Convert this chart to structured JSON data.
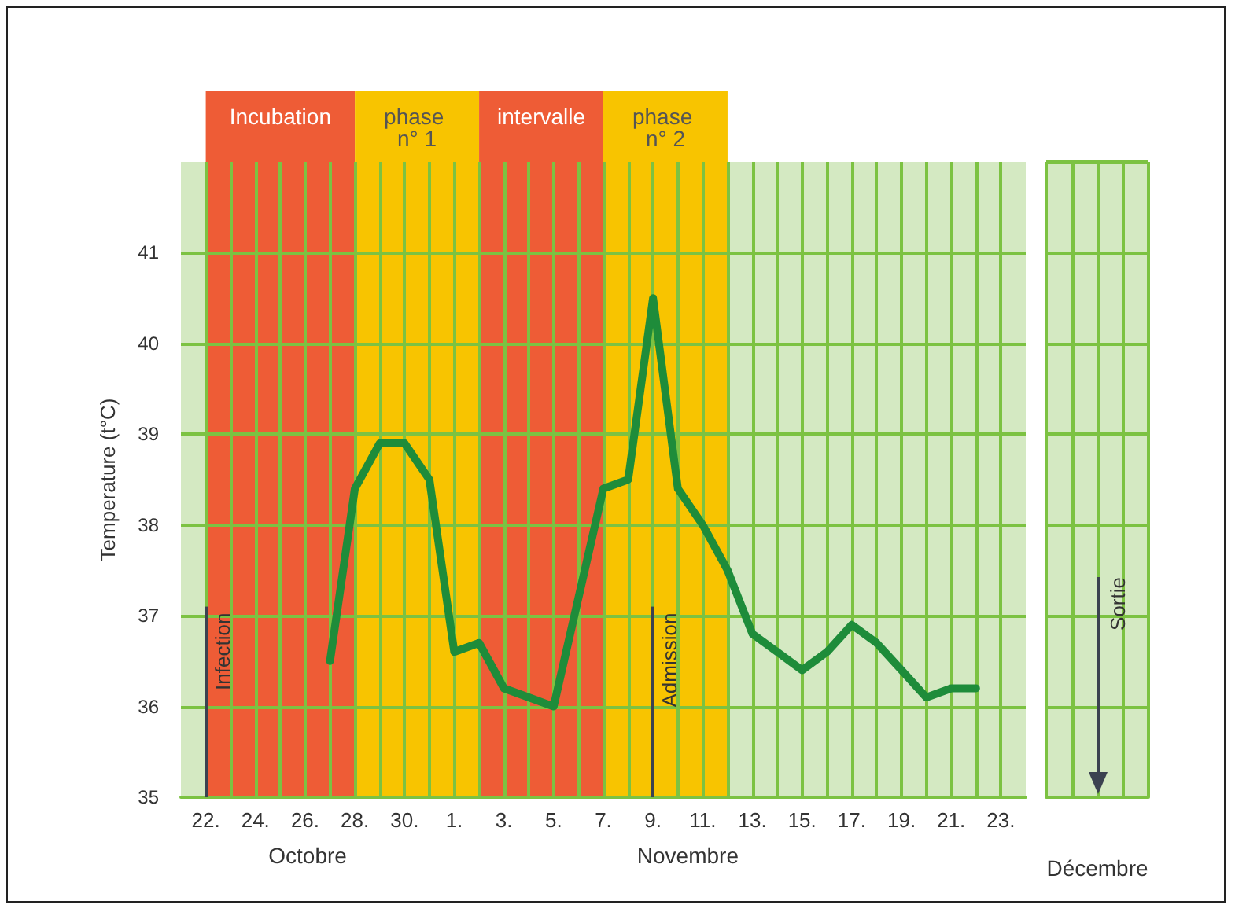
{
  "chart_data": [
    {
      "type": "line",
      "ylabel": "Temperature (t°C)",
      "annotations": [
        "Octobre",
        "Novembre"
      ],
      "xlim": [
        "--10-21",
        "--11-24"
      ],
      "ylim": [
        35,
        42
      ],
      "yticks": [
        35,
        36,
        37,
        38,
        39,
        40,
        41
      ],
      "xticks": [
        {
          "value": "--10-22",
          "label": "22."
        },
        {
          "value": "--10-23",
          "label": null
        },
        {
          "value": "--10-24",
          "label": "24."
        },
        {
          "value": "--10-25",
          "label": null
        },
        {
          "value": "--10-26",
          "label": "26."
        },
        {
          "value": "--10-27",
          "label": null
        },
        {
          "value": "--10-28",
          "label": "28."
        },
        {
          "value": "--10-29",
          "label": null
        },
        {
          "value": "--10-30",
          "label": "30."
        },
        {
          "value": "--10-31",
          "label": null
        },
        {
          "value": "--11-01",
          "label": "1."
        },
        {
          "value": "--11-02",
          "label": null
        },
        {
          "value": "--11-03",
          "label": "3."
        },
        {
          "value": "--11-04",
          "label": null
        },
        {
          "value": "--11-05",
          "label": "5."
        },
        {
          "value": "--11-06",
          "label": null
        },
        {
          "value": "--11-07",
          "label": "7."
        },
        {
          "value": "--11-08",
          "label": null
        },
        {
          "value": "--11-09",
          "label": "9."
        },
        {
          "value": "--11-10",
          "label": null
        },
        {
          "value": "--11-11",
          "label": "11."
        },
        {
          "value": "--11-12",
          "label": null
        },
        {
          "value": "--11-13",
          "label": "13."
        },
        {
          "value": "--11-14",
          "label": null
        },
        {
          "value": "--11-15",
          "label": "15."
        },
        {
          "value": "--11-16",
          "label": null
        },
        {
          "value": "--11-17",
          "label": "17."
        },
        {
          "value": "--11-18",
          "label": null
        },
        {
          "value": "--11-19",
          "label": "19."
        },
        {
          "value": "--11-20",
          "label": null
        },
        {
          "value": "--11-21",
          "label": "21."
        },
        {
          "value": "--11-22",
          "label": null
        },
        {
          "value": "--11-23",
          "label": "23."
        }
      ],
      "grid": true,
      "marker": "none",
      "series": [
        {
          "color": "#1e8c3a",
          "x": [
            "--10-27",
            "--10-28",
            "--10-29",
            "--10-30",
            "--10-31",
            "--11-01",
            "--11-02",
            "--11-03",
            "--11-04",
            "--11-05",
            "--11-06",
            "--11-07",
            "--11-08",
            "--11-09",
            "--11-10",
            "--11-11",
            "--11-12",
            "--11-13",
            "--11-14",
            "--11-15",
            "--11-16",
            "--11-17",
            "--11-18",
            "--11-19",
            "--11-20",
            "--11-21",
            "--11-22"
          ],
          "values": [
            36.5,
            38.4,
            38.9,
            38.9,
            38.5,
            36.6,
            36.7,
            36.2,
            36.1,
            36.0,
            37.2,
            38.4,
            38.5,
            40.5,
            38.4,
            38.0,
            37.5,
            36.8,
            36.6,
            36.4,
            36.6,
            36.9,
            36.7,
            36.4,
            36.1,
            36.2,
            36.2
          ]
        }
      ],
      "bands": [
        {
          "axis": "x",
          "from": "--10-22",
          "to": "--10-28",
          "label": "Incubation",
          "color": "#ee5c36"
        },
        {
          "axis": "x",
          "from": "--10-28",
          "to": "--11-02",
          "label": "phase n° 1",
          "color": "#f8c400"
        },
        {
          "axis": "x",
          "from": "--11-02",
          "to": "--11-07",
          "label": "intervalle",
          "color": "#ee5c36"
        },
        {
          "axis": "x",
          "from": "--11-07",
          "to": "--11-12",
          "label": "phase n° 2",
          "color": "#f8c400"
        }
      ],
      "ref_lines": [
        {
          "axis": "x",
          "value": "--10-22",
          "label": "Infection",
          "color": "#3b4250"
        },
        {
          "axis": "x",
          "value": "--11-09",
          "label": "Admission",
          "color": "#3b4250"
        }
      ]
    },
    {
      "type": "other",
      "xlabel": "Décembre",
      "annotations": [
        "Sortie"
      ]
    }
  ]
}
